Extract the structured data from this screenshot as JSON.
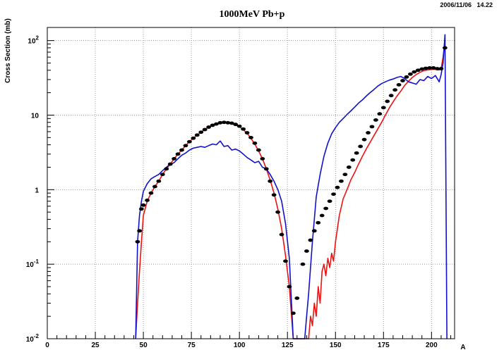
{
  "header": {
    "timestamp": "2006/11/06   14.22"
  },
  "chart_data": {
    "type": "line",
    "title": "1000MeV Pb+p",
    "xlabel": "A",
    "ylabel": "Cross Section (mb)",
    "xlim": [
      0,
      212
    ],
    "ylim": [
      0.01,
      150
    ],
    "y_scale": "log",
    "grid": true,
    "x_ticks": [
      0,
      25,
      50,
      75,
      100,
      125,
      150,
      175,
      200
    ],
    "x_tick_labels": [
      "0",
      "25",
      "50",
      "75",
      "100",
      "125",
      "150",
      "175",
      "200"
    ],
    "y_ticks": [
      0.01,
      0.1,
      1,
      10,
      100
    ],
    "y_tick_labels": [
      {
        "base": "10",
        "exp": "-2"
      },
      {
        "base": "10",
        "exp": "-1"
      },
      {
        "base": "1",
        "exp": ""
      },
      {
        "base": "10",
        "exp": ""
      },
      {
        "base": "10",
        "exp": "2"
      }
    ],
    "colors": {
      "data": "#000000",
      "red_curve": "#ee1111",
      "blue_curve": "#1111cc",
      "grid": "#999999"
    },
    "series": [
      {
        "style": "markers",
        "color": "#000000",
        "x": [
          47,
          48,
          49,
          50,
          52,
          54,
          56,
          58,
          60,
          62,
          64,
          66,
          68,
          70,
          72,
          74,
          76,
          78,
          80,
          82,
          84,
          86,
          88,
          90,
          92,
          94,
          96,
          98,
          100,
          102,
          104,
          106,
          108,
          110,
          112,
          114,
          116,
          118,
          120,
          122,
          124,
          126,
          128,
          130,
          133,
          135,
          137,
          139,
          141,
          143,
          145,
          147,
          149,
          151,
          153,
          155,
          157,
          159,
          161,
          163,
          165,
          167,
          169,
          171,
          173,
          175,
          177,
          179,
          181,
          183,
          185,
          187,
          189,
          191,
          193,
          195,
          197,
          199,
          201,
          203,
          205,
          207
        ],
        "y": [
          0.2,
          0.28,
          0.55,
          0.62,
          0.72,
          0.9,
          1.1,
          1.3,
          1.6,
          1.9,
          2.2,
          2.6,
          3.0,
          3.4,
          3.9,
          4.4,
          4.9,
          5.4,
          5.9,
          6.4,
          6.9,
          7.3,
          7.6,
          7.9,
          8.0,
          7.9,
          7.8,
          7.5,
          7.1,
          6.5,
          5.8,
          5.0,
          4.2,
          3.4,
          2.6,
          1.9,
          1.3,
          0.85,
          0.5,
          0.25,
          0.11,
          0.05,
          0.022,
          0.035,
          0.1,
          0.15,
          0.21,
          0.28,
          0.36,
          0.45,
          0.56,
          0.7,
          0.87,
          1.07,
          1.3,
          1.6,
          2.0,
          2.5,
          3.1,
          3.8,
          4.7,
          5.8,
          7.0,
          8.6,
          10.4,
          12.6,
          15.3,
          18.3,
          21.8,
          25.5,
          29.0,
          32.5,
          35.5,
          38.0,
          40.0,
          41.5,
          42.5,
          43.0,
          43.0,
          42.0,
          42.0,
          80
        ]
      },
      {
        "style": "line",
        "color": "#ee1111",
        "x": [
          46,
          47,
          48,
          49,
          50,
          52,
          54,
          56,
          58,
          60,
          62,
          64,
          66,
          68,
          70,
          72,
          74,
          76,
          78,
          80,
          82,
          84,
          86,
          88,
          90,
          92,
          94,
          96,
          98,
          100,
          102,
          104,
          106,
          108,
          110,
          112,
          114,
          116,
          118,
          120,
          122,
          124,
          126,
          128,
          136,
          137,
          138,
          139,
          140,
          141,
          142,
          143,
          144,
          145,
          146,
          147,
          148,
          149,
          150,
          152,
          154,
          156,
          158,
          160,
          162,
          164,
          166,
          168,
          170,
          172,
          174,
          176,
          178,
          180,
          182,
          184,
          186,
          188,
          190,
          192,
          194,
          196,
          198,
          200,
          202,
          204,
          205,
          206,
          207
        ],
        "y": [
          0.01,
          0.03,
          0.08,
          0.2,
          0.45,
          0.7,
          0.9,
          1.1,
          1.3,
          1.6,
          1.9,
          2.2,
          2.6,
          3.0,
          3.4,
          3.9,
          4.4,
          4.9,
          5.4,
          5.9,
          6.4,
          6.9,
          7.3,
          7.6,
          7.8,
          7.9,
          7.8,
          7.7,
          7.4,
          7.0,
          6.4,
          5.7,
          4.9,
          4.1,
          3.3,
          2.6,
          1.9,
          1.35,
          0.9,
          0.55,
          0.3,
          0.13,
          0.05,
          0.01,
          0.01,
          0.02,
          0.015,
          0.03,
          0.02,
          0.05,
          0.03,
          0.08,
          0.1,
          0.07,
          0.12,
          0.09,
          0.14,
          0.11,
          0.2,
          0.45,
          0.75,
          1.0,
          1.35,
          1.7,
          2.2,
          2.8,
          3.5,
          4.3,
          5.3,
          6.5,
          8.0,
          10.0,
          12.5,
          15.0,
          18.0,
          21.0,
          25.0,
          28.5,
          32.0,
          35.0,
          37.5,
          39.5,
          40.5,
          41.0,
          41.0,
          40.5,
          42.0,
          60.0,
          100
        ]
      },
      {
        "style": "line",
        "color": "#1111cc",
        "x": [
          46,
          47,
          48,
          49,
          50,
          52,
          54,
          56,
          58,
          60,
          62,
          64,
          66,
          68,
          70,
          72,
          74,
          76,
          78,
          80,
          82,
          84,
          86,
          88,
          90,
          92,
          94,
          96,
          98,
          100,
          102,
          104,
          106,
          108,
          110,
          112,
          114,
          116,
          118,
          120,
          122,
          124,
          126,
          128,
          134,
          135,
          136,
          137,
          138,
          139,
          140,
          142,
          144,
          146,
          148,
          150,
          152,
          154,
          156,
          158,
          160,
          162,
          164,
          166,
          168,
          170,
          172,
          174,
          176,
          178,
          180,
          182,
          184,
          186,
          188,
          190,
          192,
          194,
          196,
          198,
          200,
          202,
          204,
          205,
          206,
          207,
          208
        ],
        "y": [
          0.01,
          0.2,
          0.45,
          0.7,
          0.95,
          1.2,
          1.4,
          1.5,
          1.6,
          1.8,
          2.0,
          2.2,
          2.3,
          2.6,
          2.9,
          3.1,
          3.4,
          3.6,
          3.7,
          3.8,
          3.7,
          3.9,
          4.1,
          4.0,
          4.5,
          3.8,
          3.9,
          3.4,
          3.5,
          3.3,
          3.0,
          2.7,
          2.5,
          2.3,
          2.4,
          2.0,
          1.9,
          1.6,
          1.3,
          1.0,
          0.7,
          0.35,
          0.12,
          0.01,
          0.01,
          0.02,
          0.04,
          0.09,
          0.2,
          0.4,
          0.8,
          1.6,
          2.8,
          4.2,
          5.6,
          6.8,
          8.0,
          9.0,
          10.2,
          11.4,
          12.8,
          14.5,
          16.0,
          18.0,
          20.0,
          22.0,
          24.5,
          26.5,
          28.0,
          29.5,
          30.5,
          32.0,
          33.0,
          31.0,
          28.0,
          27.0,
          26.0,
          30.0,
          29.0,
          33.0,
          31.0,
          34.0,
          28.0,
          35.0,
          50.0,
          120,
          0.01
        ]
      }
    ]
  }
}
